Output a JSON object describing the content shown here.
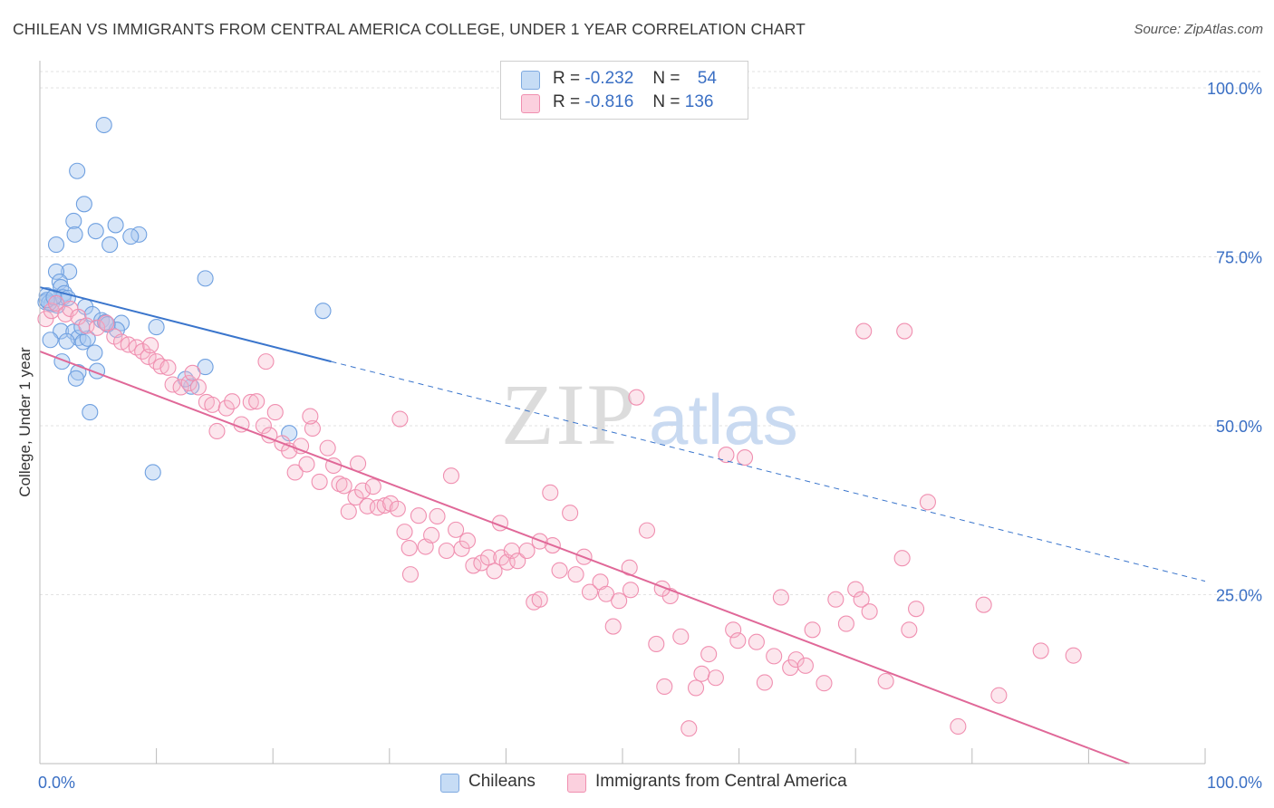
{
  "title": "CHILEAN VS IMMIGRANTS FROM CENTRAL AMERICA COLLEGE, UNDER 1 YEAR CORRELATION CHART",
  "source": "Source: ZipAtlas.com",
  "watermark": {
    "zip": "ZIP",
    "atlas": "atlas"
  },
  "legend": {
    "rows": [
      {
        "r_label": "R =",
        "r_value": "-0.232",
        "n_label": "N =",
        "n_value": "54",
        "color": "#a9c8f0"
      },
      {
        "r_label": "R =",
        "r_value": "-0.816",
        "n_label": "N =",
        "n_value": "136",
        "color": "#f7b8cc"
      }
    ]
  },
  "bottom_legend": [
    {
      "label": "Chileans",
      "color": "#a9c8f0"
    },
    {
      "label": "Immigrants from Central America",
      "color": "#f7b8cc"
    }
  ],
  "chart_data": {
    "type": "scatter",
    "title": "CHILEAN VS IMMIGRANTS FROM CENTRAL AMERICA COLLEGE, UNDER 1 YEAR CORRELATION CHART",
    "ylabel": "College, Under 1 year",
    "xlabel": "",
    "xlim": [
      0,
      100
    ],
    "ylim": [
      0,
      100
    ],
    "x_tick_labels": [
      "0.0%",
      "100.0%"
    ],
    "y_tick_labels": [
      "25.0%",
      "50.0%",
      "75.0%",
      "100.0%"
    ],
    "y_ticks": [
      25,
      50,
      75,
      100
    ],
    "grid": true,
    "colors": {
      "chileans": "#6fa0e0",
      "central_america": "#f08fb0",
      "blue_line": "#3a75cc",
      "pink_line": "#e06898"
    },
    "series": [
      {
        "name": "Chileans",
        "trend": {
          "x": [
            0,
            25
          ],
          "y": [
            70.5,
            59.5
          ],
          "dashed_to": [
            100,
            27
          ]
        },
        "points": [
          [
            5.5,
            94.5
          ],
          [
            3.2,
            87.7
          ],
          [
            3.8,
            82.8
          ],
          [
            2.9,
            80.3
          ],
          [
            6.5,
            79.7
          ],
          [
            4.8,
            78.8
          ],
          [
            3.0,
            78.3
          ],
          [
            8.5,
            78.3
          ],
          [
            7.8,
            78.0
          ],
          [
            6.0,
            76.8
          ],
          [
            1.4,
            76.8
          ],
          [
            14.2,
            71.8
          ],
          [
            2.5,
            72.8
          ],
          [
            1.4,
            72.8
          ],
          [
            1.7,
            71.3
          ],
          [
            1.8,
            70.5
          ],
          [
            2.1,
            69.6
          ],
          [
            0.6,
            69.3
          ],
          [
            0.5,
            68.3
          ],
          [
            1.0,
            68.0
          ],
          [
            1.5,
            67.8
          ],
          [
            3.9,
            67.6
          ],
          [
            24.3,
            67.0
          ],
          [
            2.0,
            69.0
          ],
          [
            0.8,
            68.2
          ],
          [
            4.5,
            66.5
          ],
          [
            5.3,
            65.6
          ],
          [
            7.0,
            65.2
          ],
          [
            10.0,
            64.6
          ],
          [
            5.6,
            65.3
          ],
          [
            6.6,
            64.2
          ],
          [
            1.8,
            64.0
          ],
          [
            2.9,
            63.9
          ],
          [
            3.3,
            63.0
          ],
          [
            0.9,
            62.7
          ],
          [
            2.3,
            62.5
          ],
          [
            3.7,
            62.4
          ],
          [
            4.1,
            62.9
          ],
          [
            4.7,
            60.8
          ],
          [
            1.9,
            59.5
          ],
          [
            4.9,
            58.1
          ],
          [
            3.3,
            57.9
          ],
          [
            3.1,
            57.0
          ],
          [
            14.2,
            58.7
          ],
          [
            13.0,
            55.8
          ],
          [
            12.5,
            56.9
          ],
          [
            4.3,
            52.0
          ],
          [
            21.4,
            48.9
          ],
          [
            9.7,
            43.1
          ],
          [
            0.6,
            68.6
          ],
          [
            2.4,
            68.9
          ],
          [
            3.6,
            64.6
          ],
          [
            5.8,
            65.0
          ],
          [
            1.2,
            69.0
          ]
        ]
      },
      {
        "name": "Immigrants from Central America",
        "trend": {
          "x": [
            0,
            93.5
          ],
          "y": [
            61,
            0
          ]
        },
        "points": [
          [
            0.5,
            65.8
          ],
          [
            1.0,
            67.0
          ],
          [
            1.4,
            68.1
          ],
          [
            2.2,
            66.5
          ],
          [
            2.6,
            67.3
          ],
          [
            3.3,
            66.1
          ],
          [
            4.0,
            64.8
          ],
          [
            4.9,
            64.5
          ],
          [
            5.7,
            65.2
          ],
          [
            6.4,
            63.2
          ],
          [
            7.0,
            62.4
          ],
          [
            7.6,
            62.0
          ],
          [
            8.3,
            61.6
          ],
          [
            8.8,
            61.0
          ],
          [
            9.3,
            60.2
          ],
          [
            9.5,
            61.9
          ],
          [
            10.0,
            59.5
          ],
          [
            10.4,
            58.8
          ],
          [
            11.0,
            58.6
          ],
          [
            11.4,
            56.1
          ],
          [
            12.1,
            55.7
          ],
          [
            12.8,
            56.3
          ],
          [
            13.1,
            57.8
          ],
          [
            13.6,
            55.7
          ],
          [
            14.3,
            53.5
          ],
          [
            14.8,
            53.1
          ],
          [
            15.2,
            49.2
          ],
          [
            16.0,
            52.6
          ],
          [
            16.5,
            53.6
          ],
          [
            17.3,
            50.2
          ],
          [
            18.1,
            53.5
          ],
          [
            18.6,
            53.6
          ],
          [
            19.2,
            50.0
          ],
          [
            19.7,
            48.6
          ],
          [
            20.2,
            52.0
          ],
          [
            20.8,
            47.4
          ],
          [
            21.4,
            46.3
          ],
          [
            21.9,
            43.1
          ],
          [
            22.4,
            47.0
          ],
          [
            22.9,
            44.3
          ],
          [
            23.4,
            49.6
          ],
          [
            24.0,
            41.7
          ],
          [
            24.7,
            46.7
          ],
          [
            25.2,
            44.1
          ],
          [
            25.7,
            41.4
          ],
          [
            26.1,
            41.1
          ],
          [
            26.5,
            37.3
          ],
          [
            27.1,
            39.4
          ],
          [
            27.7,
            40.4
          ],
          [
            28.1,
            38.1
          ],
          [
            28.6,
            41.0
          ],
          [
            29.0,
            37.9
          ],
          [
            29.6,
            38.2
          ],
          [
            30.1,
            38.5
          ],
          [
            30.7,
            37.7
          ],
          [
            31.3,
            34.3
          ],
          [
            31.7,
            31.9
          ],
          [
            31.8,
            28.0
          ],
          [
            32.5,
            36.7
          ],
          [
            33.1,
            32.1
          ],
          [
            33.6,
            33.8
          ],
          [
            34.1,
            36.6
          ],
          [
            34.9,
            31.5
          ],
          [
            35.7,
            34.6
          ],
          [
            36.2,
            31.8
          ],
          [
            36.7,
            33.0
          ],
          [
            37.2,
            29.3
          ],
          [
            37.9,
            29.7
          ],
          [
            38.5,
            30.5
          ],
          [
            39.0,
            28.5
          ],
          [
            39.6,
            30.5
          ],
          [
            40.1,
            29.8
          ],
          [
            40.5,
            31.5
          ],
          [
            41.0,
            30.0
          ],
          [
            41.8,
            31.5
          ],
          [
            42.4,
            23.9
          ],
          [
            42.9,
            24.3
          ],
          [
            43.8,
            40.1
          ],
          [
            44.6,
            28.6
          ],
          [
            45.5,
            37.1
          ],
          [
            46.0,
            28.0
          ],
          [
            46.7,
            30.6
          ],
          [
            47.2,
            25.4
          ],
          [
            48.1,
            26.9
          ],
          [
            48.6,
            25.1
          ],
          [
            49.2,
            20.3
          ],
          [
            49.7,
            24.1
          ],
          [
            50.6,
            29.0
          ],
          [
            51.2,
            54.2
          ],
          [
            52.1,
            34.5
          ],
          [
            52.9,
            17.7
          ],
          [
            53.6,
            11.4
          ],
          [
            54.1,
            24.8
          ],
          [
            55.0,
            18.8
          ],
          [
            55.7,
            5.2
          ],
          [
            56.3,
            11.2
          ],
          [
            56.8,
            13.3
          ],
          [
            57.4,
            16.2
          ],
          [
            58.0,
            12.7
          ],
          [
            58.9,
            45.7
          ],
          [
            59.5,
            19.8
          ],
          [
            59.9,
            18.2
          ],
          [
            60.5,
            45.3
          ],
          [
            61.5,
            18.0
          ],
          [
            62.2,
            12.0
          ],
          [
            63.0,
            15.9
          ],
          [
            63.6,
            24.6
          ],
          [
            64.4,
            14.2
          ],
          [
            64.9,
            15.4
          ],
          [
            65.7,
            14.5
          ],
          [
            66.3,
            19.8
          ],
          [
            67.3,
            11.9
          ],
          [
            68.3,
            24.3
          ],
          [
            69.2,
            20.7
          ],
          [
            70.0,
            25.8
          ],
          [
            70.5,
            24.3
          ],
          [
            71.2,
            22.5
          ],
          [
            72.6,
            12.2
          ],
          [
            74.0,
            30.4
          ],
          [
            74.6,
            19.8
          ],
          [
            75.2,
            22.9
          ],
          [
            70.7,
            64.0
          ],
          [
            74.2,
            64.0
          ],
          [
            76.2,
            38.7
          ],
          [
            78.8,
            5.5
          ],
          [
            81.0,
            23.5
          ],
          [
            82.3,
            10.1
          ],
          [
            85.9,
            16.7
          ],
          [
            88.7,
            16.0
          ],
          [
            19.4,
            59.5
          ],
          [
            23.2,
            51.4
          ],
          [
            27.3,
            44.4
          ],
          [
            30.9,
            51.0
          ],
          [
            35.3,
            42.6
          ],
          [
            44.0,
            32.3
          ],
          [
            50.7,
            25.7
          ],
          [
            39.5,
            35.6
          ],
          [
            42.9,
            32.9
          ],
          [
            53.4,
            25.9
          ]
        ]
      }
    ]
  }
}
